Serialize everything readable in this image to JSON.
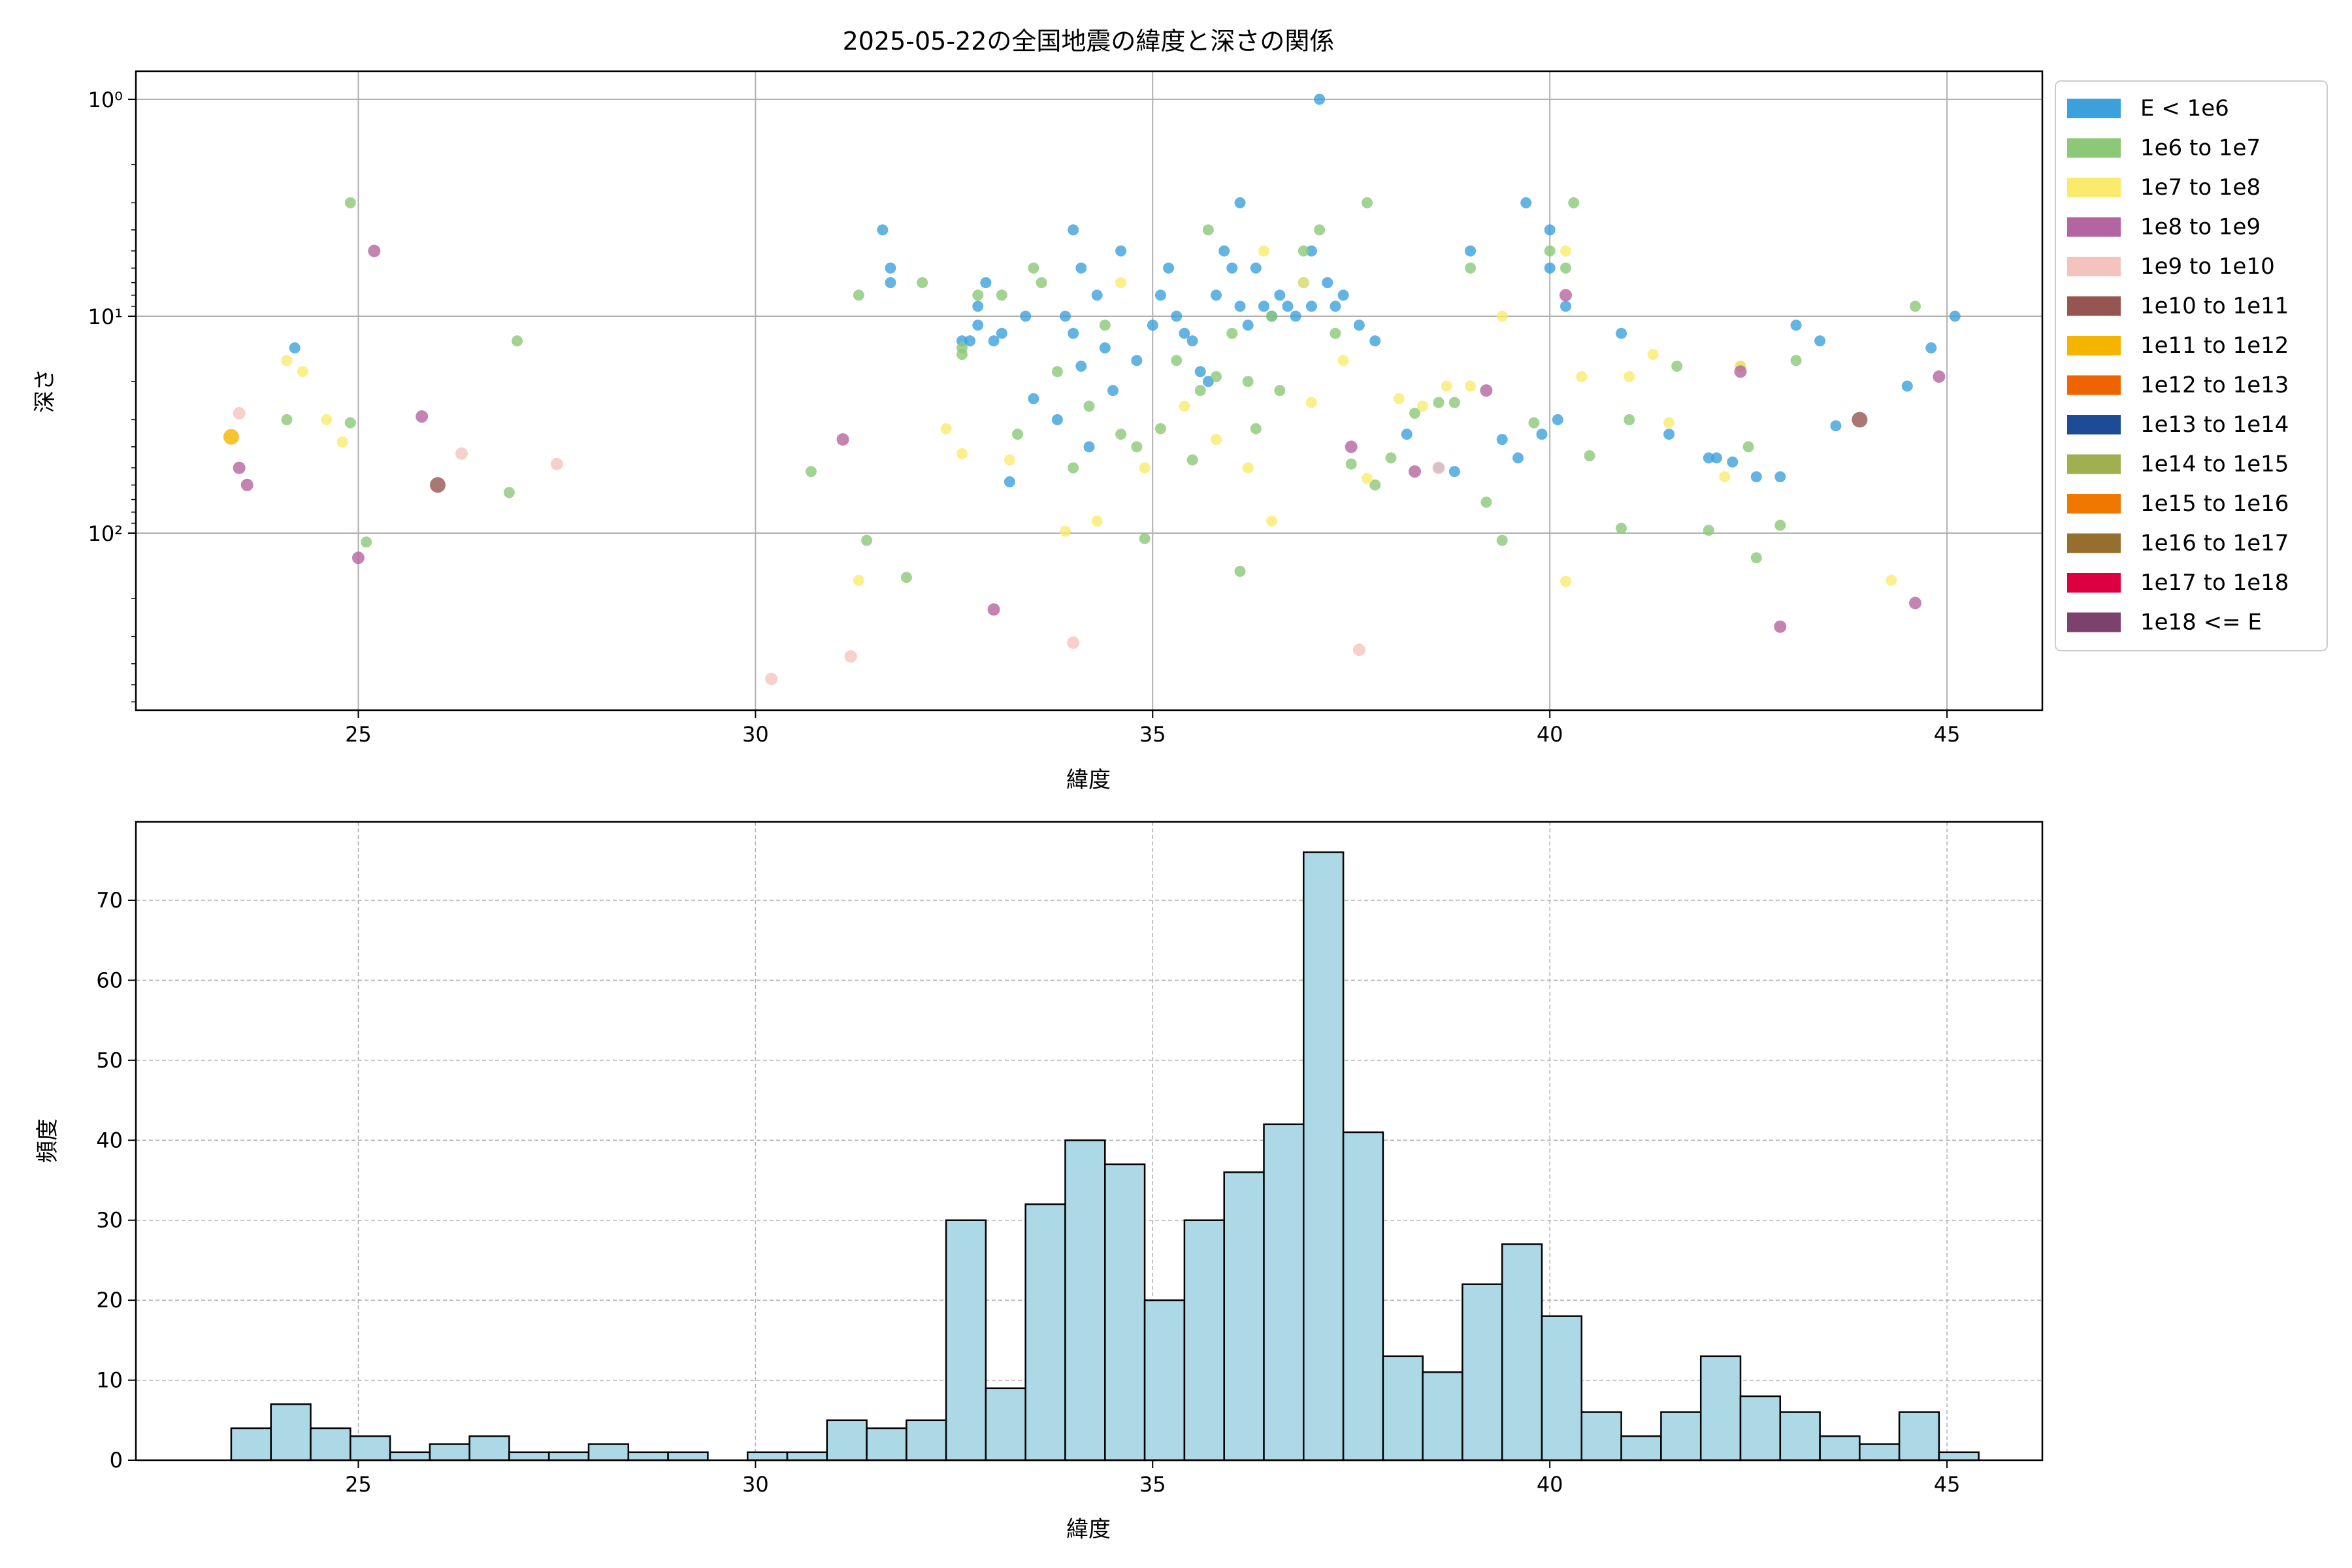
{
  "title": "2025-05-22の全国地震の緯度と深さの関係",
  "colors": {
    "background": "#ffffff",
    "hist_fill": "#add8e6",
    "grid": "#b0b0b0"
  },
  "chart_data": [
    {
      "type": "scatter",
      "xlabel": "緯度",
      "ylabel": "深さ",
      "xlim": [
        22.2,
        46.2
      ],
      "y_scale": "log",
      "y_inverted": true,
      "ylim": [
        1,
        1000
      ],
      "ytick_labels": [
        "10⁰",
        "10¹",
        "10²"
      ],
      "xticks": [
        25,
        30,
        35,
        40,
        45
      ],
      "grid": true,
      "legend_position": "outside-right",
      "legend": [
        {
          "label": "E < 1e6",
          "color": "#3ca0dc"
        },
        {
          "label": "1e6 to 1e7",
          "color": "#8cc878"
        },
        {
          "label": "1e7 to 1e8",
          "color": "#faeb6e"
        },
        {
          "label": "1e8 to 1e9",
          "color": "#b464a0"
        },
        {
          "label": "1e9 to 1e10",
          "color": "#f5c3be"
        },
        {
          "label": "1e10 to 1e11",
          "color": "#965550"
        },
        {
          "label": "1e11 to 1e12",
          "color": "#f5b400"
        },
        {
          "label": "1e12 to 1e13",
          "color": "#f06400"
        },
        {
          "label": "1e13 to 1e14",
          "color": "#1e4b96"
        },
        {
          "label": "1e14 to 1e15",
          "color": "#a0af50"
        },
        {
          "label": "1e15 to 1e16",
          "color": "#f07800"
        },
        {
          "label": "1e16 to 1e17",
          "color": "#966e2d"
        },
        {
          "label": "1e17 to 1e18",
          "color": "#dc0041"
        },
        {
          "label": "1e18 <= E",
          "color": "#7d416e"
        }
      ],
      "series": [
        {
          "legend_index": 0,
          "points": [
            [
              24.2,
              14
            ],
            [
              31.6,
              4
            ],
            [
              31.7,
              6
            ],
            [
              31.7,
              7
            ],
            [
              32.6,
              13
            ],
            [
              32.7,
              13
            ],
            [
              32.8,
              9
            ],
            [
              32.8,
              11
            ],
            [
              32.9,
              7
            ],
            [
              33.0,
              13
            ],
            [
              33.1,
              12
            ],
            [
              33.2,
              58
            ],
            [
              33.4,
              10
            ],
            [
              33.5,
              24
            ],
            [
              33.8,
              30
            ],
            [
              33.9,
              10
            ],
            [
              34.0,
              4
            ],
            [
              34.0,
              12
            ],
            [
              34.1,
              6
            ],
            [
              34.1,
              17
            ],
            [
              34.2,
              40
            ],
            [
              34.3,
              8
            ],
            [
              34.4,
              14
            ],
            [
              34.5,
              22
            ],
            [
              34.6,
              5
            ],
            [
              34.8,
              16
            ],
            [
              35.0,
              11
            ],
            [
              35.1,
              8
            ],
            [
              35.2,
              6
            ],
            [
              35.3,
              10
            ],
            [
              35.4,
              12
            ],
            [
              35.5,
              13
            ],
            [
              35.6,
              18
            ],
            [
              35.7,
              20
            ],
            [
              35.8,
              8
            ],
            [
              35.9,
              5
            ],
            [
              36.0,
              6
            ],
            [
              36.1,
              3
            ],
            [
              36.1,
              9
            ],
            [
              36.2,
              11
            ],
            [
              36.3,
              6
            ],
            [
              36.4,
              9
            ],
            [
              36.5,
              10
            ],
            [
              36.6,
              8
            ],
            [
              36.7,
              9
            ],
            [
              36.8,
              10
            ],
            [
              36.9,
              7
            ],
            [
              37.0,
              5
            ],
            [
              37.0,
              9
            ],
            [
              37.1,
              1
            ],
            [
              37.2,
              7
            ],
            [
              37.3,
              9
            ],
            [
              37.4,
              8
            ],
            [
              37.6,
              11
            ],
            [
              37.8,
              13
            ],
            [
              38.2,
              35
            ],
            [
              38.6,
              50
            ],
            [
              38.8,
              52
            ],
            [
              39.0,
              5
            ],
            [
              39.4,
              37
            ],
            [
              39.6,
              45
            ],
            [
              39.7,
              3
            ],
            [
              39.9,
              35
            ],
            [
              40.0,
              6
            ],
            [
              40.0,
              4
            ],
            [
              40.1,
              30
            ],
            [
              40.2,
              9
            ],
            [
              40.9,
              12
            ],
            [
              41.5,
              35
            ],
            [
              42.0,
              45
            ],
            [
              42.1,
              45
            ],
            [
              42.3,
              47
            ],
            [
              42.6,
              55
            ],
            [
              42.9,
              55
            ],
            [
              43.1,
              11
            ],
            [
              43.4,
              13
            ],
            [
              43.6,
              32
            ],
            [
              44.5,
              21
            ],
            [
              44.8,
              14
            ],
            [
              45.1,
              10
            ]
          ]
        },
        {
          "legend_index": 1,
          "points": [
            [
              24.9,
              3
            ],
            [
              24.9,
              31
            ],
            [
              25.1,
              110
            ],
            [
              24.1,
              30
            ],
            [
              26.9,
              65
            ],
            [
              27.0,
              13
            ],
            [
              30.7,
              52
            ],
            [
              31.3,
              8
            ],
            [
              31.4,
              108
            ],
            [
              31.9,
              160
            ],
            [
              32.1,
              7
            ],
            [
              32.6,
              14
            ],
            [
              32.6,
              15
            ],
            [
              32.8,
              8
            ],
            [
              33.1,
              8
            ],
            [
              33.3,
              35
            ],
            [
              33.5,
              6
            ],
            [
              33.6,
              7
            ],
            [
              33.8,
              18
            ],
            [
              34.0,
              50
            ],
            [
              34.2,
              26
            ],
            [
              34.4,
              11
            ],
            [
              34.6,
              35
            ],
            [
              34.8,
              40
            ],
            [
              34.9,
              106
            ],
            [
              35.1,
              33
            ],
            [
              35.3,
              16
            ],
            [
              35.5,
              46
            ],
            [
              35.6,
              22
            ],
            [
              35.7,
              4
            ],
            [
              35.8,
              19
            ],
            [
              36.0,
              12
            ],
            [
              36.1,
              150
            ],
            [
              36.2,
              20
            ],
            [
              36.3,
              33
            ],
            [
              36.5,
              10
            ],
            [
              36.6,
              22
            ],
            [
              36.9,
              5
            ],
            [
              37.1,
              4
            ],
            [
              37.3,
              12
            ],
            [
              37.5,
              48
            ],
            [
              37.7,
              3
            ],
            [
              37.8,
              60
            ],
            [
              38.0,
              45
            ],
            [
              38.3,
              28
            ],
            [
              38.6,
              25
            ],
            [
              38.8,
              25
            ],
            [
              39.0,
              6
            ],
            [
              39.2,
              72
            ],
            [
              39.4,
              108
            ],
            [
              39.8,
              31
            ],
            [
              40.0,
              5
            ],
            [
              40.2,
              6
            ],
            [
              40.3,
              3
            ],
            [
              40.5,
              44
            ],
            [
              40.9,
              95
            ],
            [
              41.0,
              30
            ],
            [
              41.6,
              17
            ],
            [
              42.0,
              97
            ],
            [
              42.4,
              17
            ],
            [
              42.5,
              40
            ],
            [
              42.6,
              130
            ],
            [
              42.9,
              92
            ],
            [
              43.1,
              16
            ],
            [
              44.6,
              9
            ]
          ]
        },
        {
          "legend_index": 2,
          "points": [
            [
              24.1,
              16
            ],
            [
              24.3,
              18
            ],
            [
              24.6,
              30
            ],
            [
              24.8,
              38
            ],
            [
              31.3,
              165
            ],
            [
              32.4,
              33
            ],
            [
              32.6,
              43
            ],
            [
              33.2,
              46
            ],
            [
              33.9,
              98
            ],
            [
              34.3,
              88
            ],
            [
              34.6,
              7
            ],
            [
              34.9,
              50
            ],
            [
              35.4,
              26
            ],
            [
              35.8,
              37
            ],
            [
              36.2,
              50
            ],
            [
              36.4,
              5
            ],
            [
              36.5,
              88
            ],
            [
              36.9,
              7
            ],
            [
              37.0,
              25
            ],
            [
              37.4,
              16
            ],
            [
              37.7,
              56
            ],
            [
              38.1,
              24
            ],
            [
              38.4,
              26
            ],
            [
              38.7,
              21
            ],
            [
              39.0,
              21
            ],
            [
              39.4,
              10
            ],
            [
              40.2,
              5
            ],
            [
              40.2,
              167
            ],
            [
              40.4,
              19
            ],
            [
              41.0,
              19
            ],
            [
              41.3,
              15
            ],
            [
              41.5,
              31
            ],
            [
              42.2,
              55
            ],
            [
              42.4,
              17
            ],
            [
              44.3,
              165
            ]
          ]
        },
        {
          "legend_index": 3,
          "points": [
            [
              23.5,
              50
            ],
            [
              23.6,
              60
            ],
            [
              25.0,
              130
            ],
            [
              25.2,
              5
            ],
            [
              25.8,
              29
            ],
            [
              31.1,
              37
            ],
            [
              33.0,
              225
            ],
            [
              37.5,
              40
            ],
            [
              38.3,
              52
            ],
            [
              39.2,
              22
            ],
            [
              40.2,
              8
            ],
            [
              42.4,
              18
            ],
            [
              42.9,
              270
            ],
            [
              44.6,
              210
            ],
            [
              44.9,
              19
            ]
          ]
        },
        {
          "legend_index": 4,
          "points": [
            [
              23.5,
              28
            ],
            [
              26.3,
              43
            ],
            [
              27.5,
              48
            ],
            [
              30.2,
              470
            ],
            [
              31.2,
              370
            ],
            [
              34.0,
              320
            ],
            [
              37.6,
              345
            ],
            [
              38.6,
              50
            ]
          ]
        },
        {
          "legend_index": 5,
          "points": [
            [
              26.0,
              60
            ],
            [
              43.9,
              30
            ]
          ]
        },
        {
          "legend_index": 6,
          "points": [
            [
              23.4,
              36
            ]
          ]
        }
      ]
    },
    {
      "type": "bar",
      "xlabel": "緯度",
      "ylabel": "頻度",
      "xlim": [
        22.2,
        46.2
      ],
      "ylim": [
        0,
        79.8
      ],
      "xticks": [
        25,
        30,
        35,
        40,
        45
      ],
      "yticks": [
        0,
        10,
        20,
        30,
        40,
        50,
        60,
        70
      ],
      "grid": true,
      "bin_start": 23.4,
      "bin_width": 0.5,
      "values": [
        4,
        7,
        4,
        3,
        1,
        2,
        3,
        1,
        1,
        2,
        1,
        1,
        0,
        1,
        1,
        5,
        4,
        5,
        30,
        9,
        32,
        40,
        37,
        20,
        30,
        36,
        42,
        76,
        41,
        13,
        11,
        22,
        27,
        18,
        6,
        3,
        6,
        13,
        8,
        6,
        3,
        2,
        6,
        1
      ]
    }
  ]
}
